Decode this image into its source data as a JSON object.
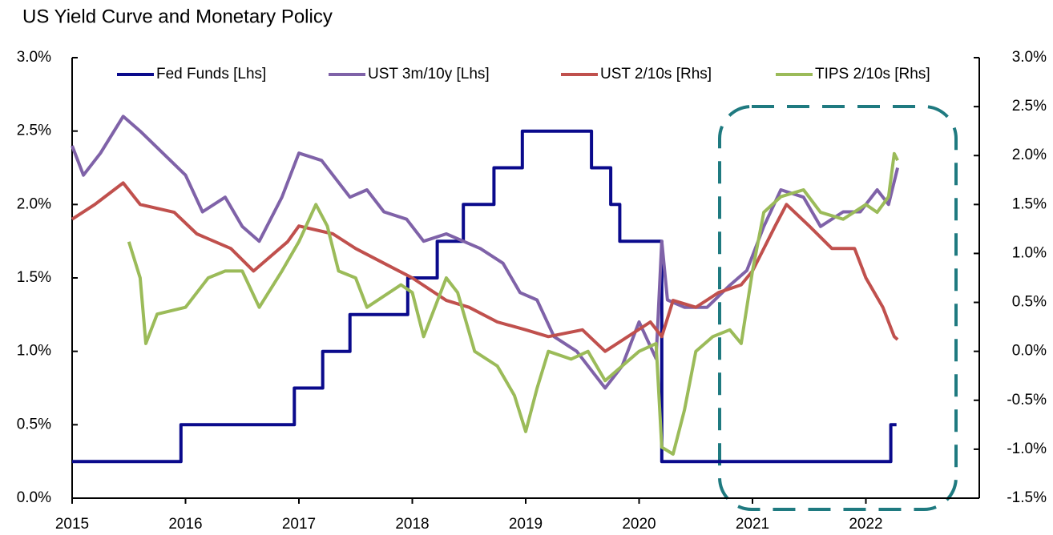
{
  "chart_data": {
    "type": "line",
    "title": "US Yield Curve and Monetary Policy",
    "xlim": [
      2015,
      2023
    ],
    "xticks": [
      2015,
      2016,
      2017,
      2018,
      2019,
      2020,
      2021,
      2022
    ],
    "ylim": [
      0,
      3.0
    ],
    "yticks": [
      {
        "value": 0,
        "label": "0.0%"
      },
      {
        "value": 0.5,
        "label": "0.5%"
      },
      {
        "value": 1.0,
        "label": "1.0%"
      },
      {
        "value": 1.5,
        "label": "1.5%"
      },
      {
        "value": 2.0,
        "label": "2.0%"
      },
      {
        "value": 2.5,
        "label": "2.5%"
      },
      {
        "value": 3.0,
        "label": "3.0%"
      }
    ],
    "y2lim": [
      -1.5,
      3.0
    ],
    "y2ticks": [
      {
        "value": -1.5,
        "label": "-1.5%"
      },
      {
        "value": -1.0,
        "label": "-1.0%"
      },
      {
        "value": -0.5,
        "label": "-0.5%"
      },
      {
        "value": 0,
        "label": "0.0%"
      },
      {
        "value": 0.5,
        "label": "0.5%"
      },
      {
        "value": 1.0,
        "label": "1.0%"
      },
      {
        "value": 1.5,
        "label": "1.5%"
      },
      {
        "value": 2.0,
        "label": "2.0%"
      },
      {
        "value": 2.5,
        "label": "2.5%"
      },
      {
        "value": 3.0,
        "label": "3.0%"
      }
    ],
    "legend": "top",
    "series": [
      {
        "name": "Fed Funds [Lhs]",
        "color": "#0a0a8c",
        "axis": "y",
        "x": [
          2015,
          2015.96,
          2015.96,
          2016.96,
          2016.96,
          2017.21,
          2017.21,
          2017.45,
          2017.45,
          2017.96,
          2017.96,
          2018.22,
          2018.22,
          2018.45,
          2018.45,
          2018.72,
          2018.72,
          2018.97,
          2018.97,
          2019.58,
          2019.58,
          2019.75,
          2019.75,
          2019.83,
          2019.83,
          2020.2,
          2020.2,
          2022.22,
          2022.22,
          2022.27
        ],
        "values": [
          0.25,
          0.25,
          0.5,
          0.5,
          0.75,
          0.75,
          1.0,
          1.0,
          1.25,
          1.25,
          1.5,
          1.5,
          1.75,
          1.75,
          2.0,
          2.0,
          2.25,
          2.25,
          2.5,
          2.5,
          2.25,
          2.25,
          2.0,
          2.0,
          1.75,
          1.75,
          0.25,
          0.25,
          0.5,
          0.5
        ]
      },
      {
        "name": "UST 3m/10y [Lhs]",
        "color": "#7f62a8",
        "axis": "y",
        "x": [
          2015.0,
          2015.1,
          2015.25,
          2015.45,
          2015.6,
          2015.8,
          2016.0,
          2016.15,
          2016.35,
          2016.5,
          2016.65,
          2016.85,
          2017.0,
          2017.2,
          2017.45,
          2017.6,
          2017.75,
          2017.95,
          2018.1,
          2018.3,
          2018.45,
          2018.6,
          2018.8,
          2018.95,
          2019.1,
          2019.25,
          2019.45,
          2019.6,
          2019.7,
          2019.85,
          2020.0,
          2020.15,
          2020.2,
          2020.25,
          2020.4,
          2020.6,
          2020.8,
          2020.95,
          2021.1,
          2021.25,
          2021.45,
          2021.6,
          2021.8,
          2021.95,
          2022.1,
          2022.2,
          2022.28
        ],
        "values": [
          2.4,
          2.2,
          2.35,
          2.6,
          2.5,
          2.35,
          2.2,
          1.95,
          2.05,
          1.85,
          1.75,
          2.05,
          2.35,
          2.3,
          2.05,
          2.1,
          1.95,
          1.9,
          1.75,
          1.8,
          1.75,
          1.7,
          1.6,
          1.4,
          1.35,
          1.1,
          1.0,
          0.85,
          0.75,
          0.9,
          1.2,
          0.95,
          1.75,
          1.35,
          1.3,
          1.3,
          1.45,
          1.55,
          1.85,
          2.1,
          2.05,
          1.85,
          1.95,
          1.95,
          2.1,
          2.0,
          2.25
        ]
      },
      {
        "name": "UST 2/10s [Rhs]",
        "color": "#c0504d",
        "axis": "y2",
        "x": [
          2015.0,
          2015.2,
          2015.45,
          2015.6,
          2015.9,
          2016.1,
          2016.4,
          2016.6,
          2016.9,
          2017.0,
          2017.3,
          2017.5,
          2017.75,
          2018.0,
          2018.3,
          2018.5,
          2018.75,
          2019.0,
          2019.2,
          2019.5,
          2019.7,
          2019.9,
          2020.1,
          2020.2,
          2020.3,
          2020.5,
          2020.7,
          2020.9,
          2021.0,
          2021.2,
          2021.3,
          2021.5,
          2021.7,
          2021.9,
          2022.0,
          2022.15,
          2022.25,
          2022.28
        ],
        "values": [
          1.35,
          1.5,
          1.72,
          1.5,
          1.42,
          1.2,
          1.05,
          0.82,
          1.12,
          1.28,
          1.2,
          1.05,
          0.9,
          0.75,
          0.52,
          0.45,
          0.3,
          0.22,
          0.15,
          0.22,
          0.0,
          0.15,
          0.3,
          0.15,
          0.52,
          0.45,
          0.6,
          0.68,
          0.82,
          1.28,
          1.5,
          1.28,
          1.05,
          1.05,
          0.75,
          0.45,
          0.15,
          0.12
        ]
      },
      {
        "name": "TIPS 2/10s [Rhs]",
        "color": "#9bbb59",
        "axis": "y2",
        "x": [
          2015.5,
          2015.6,
          2015.65,
          2015.75,
          2016.0,
          2016.2,
          2016.35,
          2016.5,
          2016.65,
          2016.85,
          2017.0,
          2017.15,
          2017.25,
          2017.35,
          2017.5,
          2017.6,
          2017.9,
          2018.0,
          2018.1,
          2018.3,
          2018.4,
          2018.55,
          2018.75,
          2018.9,
          2019.0,
          2019.1,
          2019.2,
          2019.4,
          2019.55,
          2019.7,
          2019.85,
          2020.0,
          2020.15,
          2020.2,
          2020.3,
          2020.4,
          2020.5,
          2020.65,
          2020.8,
          2020.9,
          2021.0,
          2021.1,
          2021.25,
          2021.45,
          2021.6,
          2021.8,
          2022.0,
          2022.1,
          2022.2,
          2022.25,
          2022.28
        ],
        "values": [
          1.12,
          0.75,
          0.08,
          0.38,
          0.45,
          0.75,
          0.82,
          0.82,
          0.45,
          0.82,
          1.12,
          1.5,
          1.28,
          0.82,
          0.75,
          0.45,
          0.68,
          0.6,
          0.15,
          0.75,
          0.6,
          0.0,
          -0.15,
          -0.45,
          -0.82,
          -0.38,
          0.0,
          -0.08,
          0.0,
          -0.3,
          -0.15,
          0.0,
          0.08,
          -0.98,
          -1.05,
          -0.6,
          0.0,
          0.15,
          0.22,
          0.08,
          0.82,
          1.42,
          1.58,
          1.65,
          1.42,
          1.35,
          1.5,
          1.42,
          1.58,
          2.02,
          1.95
        ]
      }
    ]
  }
}
